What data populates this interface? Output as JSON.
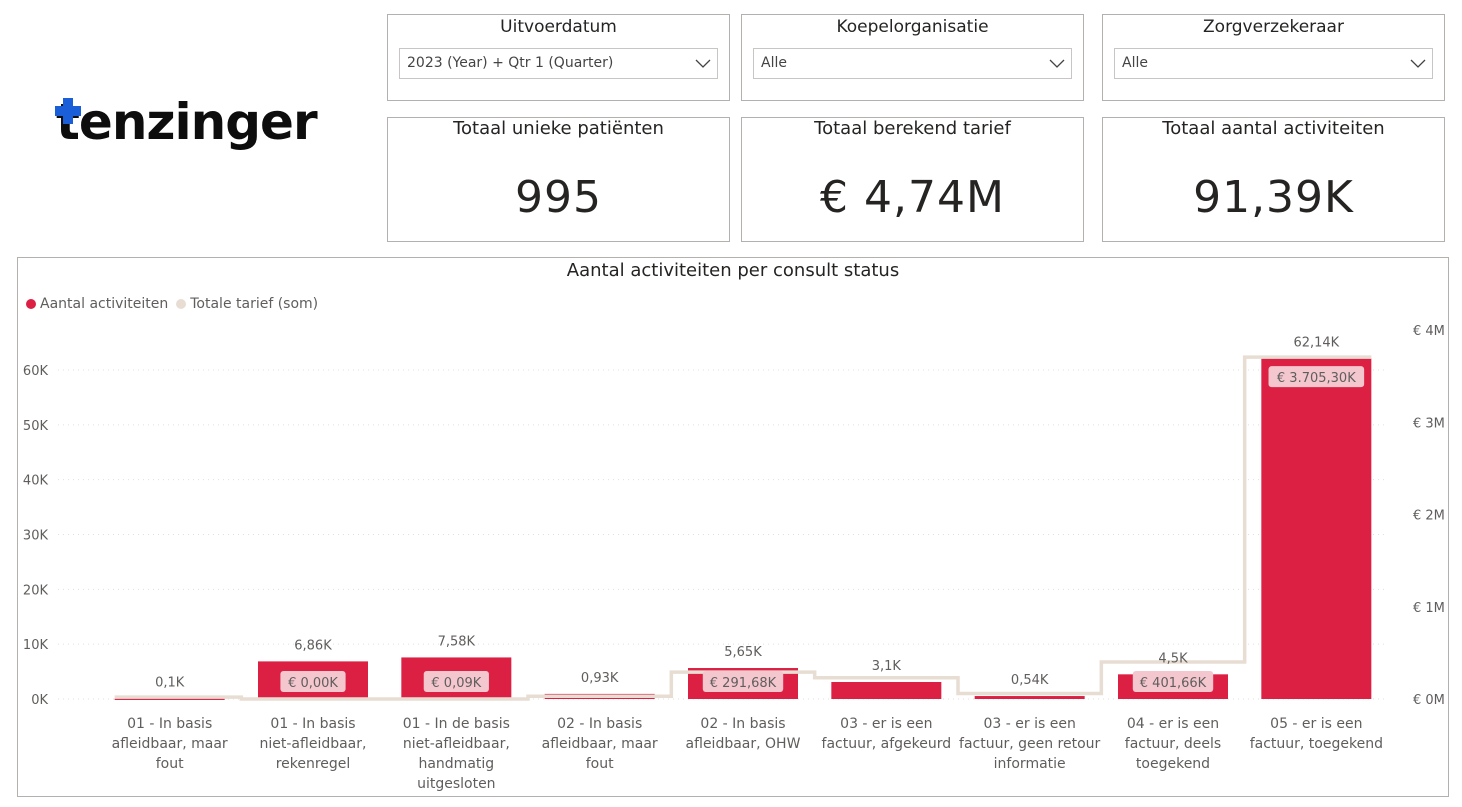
{
  "logo": {
    "text": "tenzinger"
  },
  "slicers": [
    {
      "title": "Uitvoerdatum",
      "value": "2023 (Year) + Qtr 1 (Quarter)"
    },
    {
      "title": "Koepelorganisatie",
      "value": "Alle"
    },
    {
      "title": "Zorgverzekeraar",
      "value": "Alle"
    }
  ],
  "kpis": [
    {
      "title": "Totaal unieke patiënten",
      "value": "995"
    },
    {
      "title": "Totaal berekend tarief",
      "value": "€ 4,74M"
    },
    {
      "title": "Totaal aantal activiteiten",
      "value": "91,39K"
    }
  ],
  "colors": {
    "bar": "#dc2044",
    "line": "#e8ddd3",
    "label_bg": "#f4c7cf"
  },
  "chart_data": {
    "type": "bar",
    "title": "Aantal activiteiten per consult status",
    "legend": [
      "Aantal activiteiten",
      "Totale tarief (som)"
    ],
    "legend_position": "top-left",
    "categories": [
      [
        "01 - In basis",
        "afleidbaar, maar",
        "fout"
      ],
      [
        "01 - In basis",
        "niet-afleidbaar,",
        "rekenregel"
      ],
      [
        "01 - In de basis",
        "niet-afleidbaar,",
        "handmatig",
        "uitgesloten"
      ],
      [
        "02 - In basis",
        "afleidbaar, maar",
        "fout"
      ],
      [
        "02 - In basis",
        "afleidbaar, OHW"
      ],
      [
        "03 - er is een",
        "factuur, afgekeurd"
      ],
      [
        "03 - er is een",
        "factuur, geen retour",
        "informatie"
      ],
      [
        "04 - er is een",
        "factuur, deels",
        "toegekend"
      ],
      [
        "05 - er is een",
        "factuur, toegekend"
      ]
    ],
    "series": [
      {
        "name": "Aantal activiteiten",
        "axis": "left",
        "values": [
          100,
          6860,
          7580,
          930,
          5650,
          3100,
          540,
          4500,
          62140
        ],
        "labels": [
          "0,1K",
          "6,86K",
          "7,58K",
          "0,93K",
          "5,65K",
          "3,1K",
          "0,54K",
          "4,5K",
          "62,14K"
        ]
      },
      {
        "name": "Totale tarief (som)",
        "axis": "right",
        "values": [
          20000,
          0,
          90,
          30000,
          291680,
          230000,
          60000,
          401660,
          3705300
        ],
        "labels": [
          "",
          "€ 0,00K",
          "€ 0,09K",
          "",
          "€ 291,68K",
          "",
          "",
          "€ 401,66K",
          "€ 3.705,30K"
        ]
      }
    ],
    "y_left": {
      "ticks": [
        "0K",
        "10K",
        "20K",
        "30K",
        "40K",
        "50K",
        "60K"
      ],
      "min": 0,
      "max": 60000
    },
    "y_right": {
      "ticks": [
        "€ 0M",
        "€ 1M",
        "€ 2M",
        "€ 3M",
        "€ 4M"
      ],
      "min": 0,
      "max": 4000000
    },
    "grid": true
  }
}
